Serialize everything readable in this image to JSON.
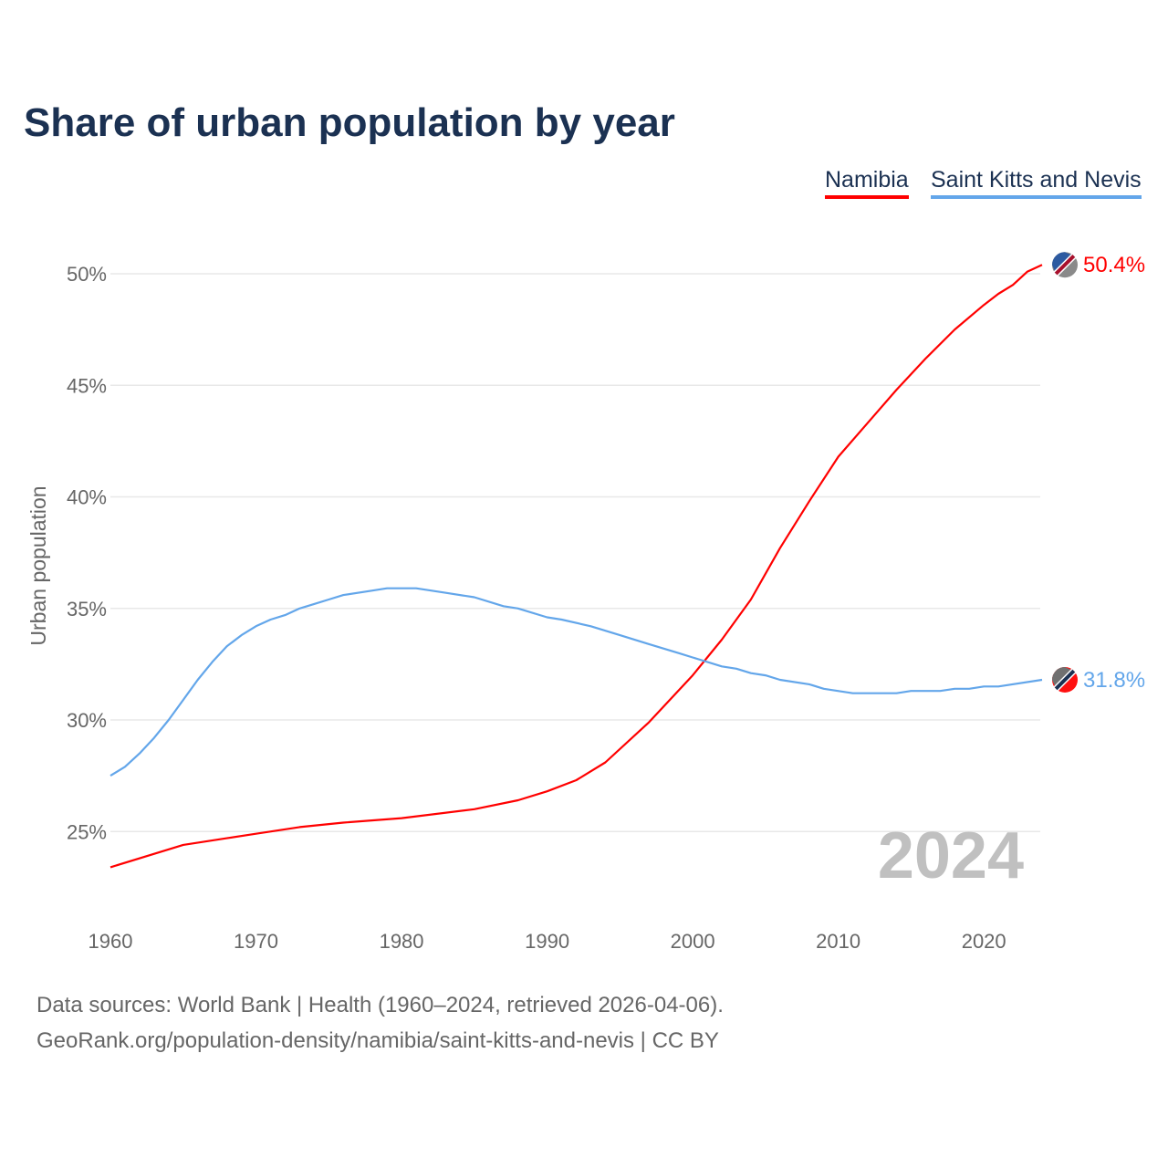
{
  "chart_data": {
    "type": "line",
    "title": "Share of urban population by year",
    "xlabel": "",
    "ylabel": "Urban population",
    "xlim": [
      1960,
      2024
    ],
    "ylim": [
      22,
      52
    ],
    "x_ticks": [
      "1960",
      "1970",
      "1980",
      "1990",
      "2000",
      "2010",
      "2020"
    ],
    "y_ticks": [
      {
        "value": 25,
        "label": "25%"
      },
      {
        "value": 30,
        "label": "30%"
      },
      {
        "value": 35,
        "label": "35%"
      },
      {
        "value": 40,
        "label": "40%"
      },
      {
        "value": 45,
        "label": "45%"
      },
      {
        "value": 50,
        "label": "50%"
      }
    ],
    "grid": true,
    "legend_position": "top-right",
    "year_watermark": "2024",
    "series": [
      {
        "name": "Namibia",
        "color": "#ff0000",
        "end_label": "50.4%",
        "x": [
          1960,
          1965,
          1968,
          1970,
          1973,
          1976,
          1980,
          1985,
          1988,
          1990,
          1992,
          1994,
          1997,
          2000,
          2002,
          2004,
          2006,
          2008,
          2010,
          2012,
          2014,
          2016,
          2018,
          2020,
          2021,
          2022,
          2023,
          2024
        ],
        "y": [
          23.4,
          24.4,
          24.7,
          24.9,
          25.2,
          25.4,
          25.6,
          26.0,
          26.4,
          26.8,
          27.3,
          28.1,
          29.9,
          32.0,
          33.6,
          35.4,
          37.7,
          39.8,
          41.8,
          43.3,
          44.8,
          46.2,
          47.5,
          48.6,
          49.1,
          49.5,
          50.1,
          50.4
        ]
      },
      {
        "name": "Saint Kitts and Nevis",
        "color": "#63a6ea",
        "end_label": "31.8%",
        "x": [
          1960,
          1961,
          1962,
          1963,
          1964,
          1965,
          1966,
          1967,
          1968,
          1969,
          1970,
          1971,
          1972,
          1973,
          1974,
          1975,
          1976,
          1978,
          1979,
          1981,
          1983,
          1985,
          1987,
          1988,
          1990,
          1991,
          1993,
          1995,
          1997,
          1999,
          2000,
          2002,
          2003,
          2004,
          2005,
          2006,
          2008,
          2009,
          2011,
          2014,
          2015,
          2017,
          2018,
          2019,
          2020,
          2021,
          2024
        ],
        "y": [
          27.5,
          27.9,
          28.5,
          29.2,
          30.0,
          30.9,
          31.8,
          32.6,
          33.3,
          33.8,
          34.2,
          34.5,
          34.7,
          35.0,
          35.2,
          35.4,
          35.6,
          35.8,
          35.9,
          35.9,
          35.7,
          35.5,
          35.1,
          35.0,
          34.6,
          34.5,
          34.2,
          33.8,
          33.4,
          33.0,
          32.8,
          32.4,
          32.3,
          32.1,
          32.0,
          31.8,
          31.6,
          31.4,
          31.2,
          31.2,
          31.3,
          31.3,
          31.4,
          31.4,
          31.5,
          31.5,
          31.8
        ]
      }
    ]
  },
  "footer": {
    "line1": "Data sources: World Bank | Health (1960–2024, retrieved 2026-04-06).",
    "line2": "GeoRank.org/population-density/namibia/saint-kitts-and-nevis | CC BY"
  }
}
